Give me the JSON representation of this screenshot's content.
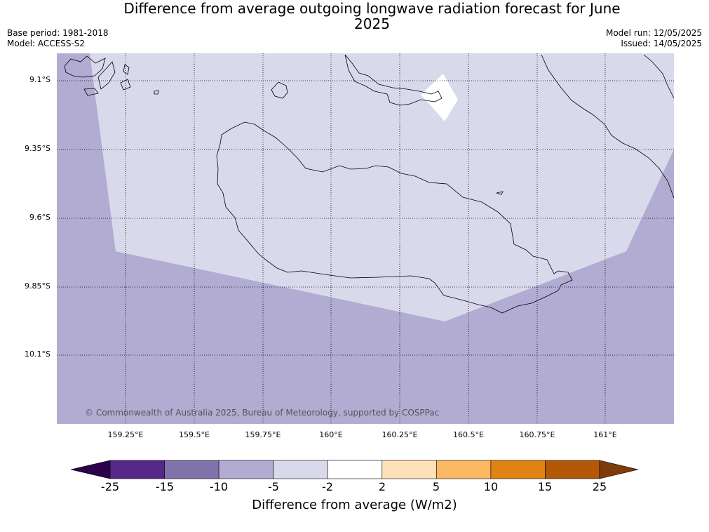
{
  "title": "Difference from average outgoing longwave radiation forecast for June 2025",
  "base_period": "Base period: 1981-2018",
  "model": "Model: ACCESS-S2",
  "model_run": "Model run: 12/05/2025",
  "issued": "Issued: 14/05/2025",
  "copyright": "© Commonwealth of Australia 2025, Bureau of Meteorology, supported by COSPPac",
  "x_ticks": [
    "159.25°E",
    "159.5°E",
    "159.75°E",
    "160°E",
    "160.25°E",
    "160.5°E",
    "160.75°E",
    "161°E"
  ],
  "y_ticks": [
    "9.1°S",
    "9.35°S",
    "9.6°S",
    "9.85°S",
    "10.1°S"
  ],
  "colorbar": {
    "title": "Difference from average (W/m2)",
    "labels": [
      "-25",
      "-15",
      "-10",
      "-5",
      "-2",
      "2",
      "5",
      "10",
      "15",
      "25"
    ],
    "colors": [
      "#2d004b",
      "#542788",
      "#8073ac",
      "#b2abd2",
      "#d8daeb",
      "#ffffff",
      "#fee0b6",
      "#fdb863",
      "#e08214",
      "#b35806",
      "#7f3b08"
    ]
  },
  "map_colors": {
    "minus_10_to_5": "#b2abd2",
    "minus_5_to_2": "#d8daeb",
    "neutral": "#ffffff"
  }
}
